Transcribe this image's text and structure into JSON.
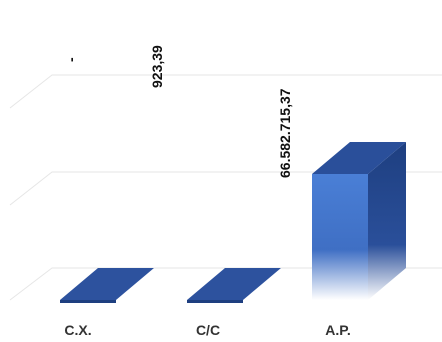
{
  "chart_data": {
    "type": "bar",
    "style": "3d-column",
    "categories": [
      "C.X.",
      "C/C",
      "A.P."
    ],
    "values": [
      0,
      923.39,
      66582715.37
    ],
    "data_labels": [
      "-",
      "923,39",
      "66.582.715,37"
    ],
    "title": "",
    "xlabel": "",
    "ylabel": "",
    "gridlines": true,
    "legend": "none",
    "colors": {
      "bar_top": "#2a4f9a",
      "bar_front_top": "#4a7fd6",
      "bar_front_bottom": "#ffffff",
      "bar_side": "#1e3f80",
      "floor_slab": "#2d529e",
      "gridline": "#e6e6e6"
    }
  }
}
